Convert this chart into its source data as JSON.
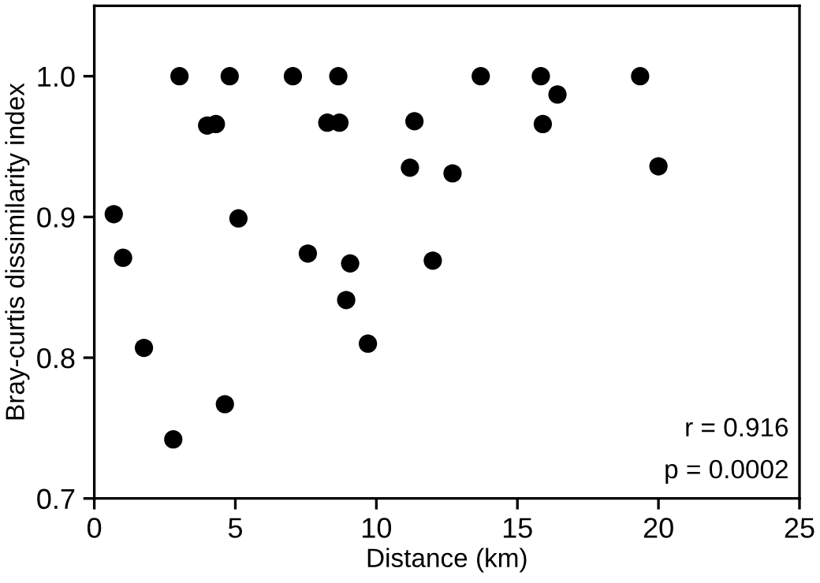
{
  "chart_data": {
    "type": "scatter",
    "xlabel": "Distance (km)",
    "ylabel": "Bray-curtis dissimilarity index",
    "x": [
      0.69,
      1.02,
      1.76,
      2.8,
      3.02,
      4.0,
      4.31,
      4.63,
      4.8,
      5.11,
      7.04,
      7.57,
      8.26,
      8.65,
      8.69,
      8.93,
      9.07,
      9.7,
      11.19,
      11.35,
      12.0,
      12.7,
      13.7,
      15.83,
      15.9,
      16.42,
      19.35,
      20.0
    ],
    "values": [
      0.902,
      0.871,
      0.807,
      0.742,
      1.0,
      0.965,
      0.966,
      0.767,
      1.0,
      0.899,
      1.0,
      0.874,
      0.967,
      1.0,
      0.967,
      0.841,
      0.867,
      0.81,
      0.935,
      0.968,
      0.869,
      0.931,
      1.0,
      1.0,
      0.966,
      0.987,
      1.0,
      0.936
    ],
    "color": "#000000",
    "marker": "circle",
    "xlim": [
      0,
      25
    ],
    "xticks": [
      0,
      5,
      10,
      15,
      20,
      25
    ],
    "ylim": [
      0.7,
      1.05
    ],
    "yticks": [
      {
        "value": 0.7,
        "label": "0.7"
      },
      {
        "value": 0.8,
        "label": "0.8"
      },
      {
        "value": 0.9,
        "label": "0.9"
      },
      {
        "value": 1.0,
        "label": "1.0"
      }
    ],
    "annotations": [
      "r = 0.916",
      "p = 0.0002"
    ]
  }
}
